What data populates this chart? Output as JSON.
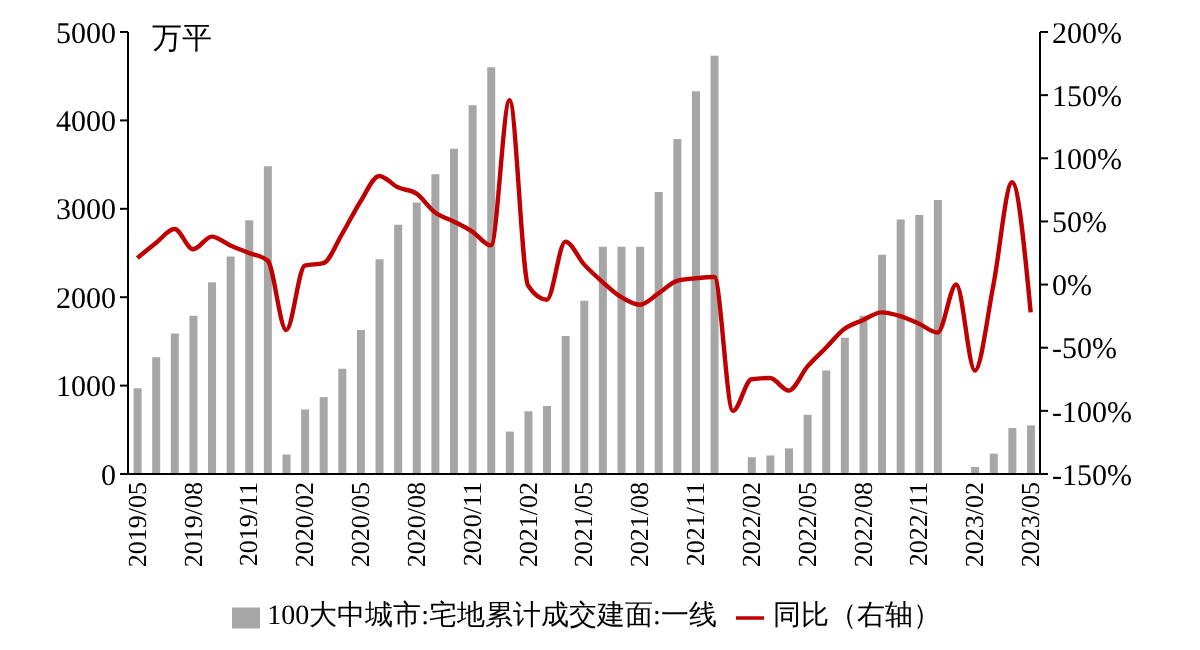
{
  "chart_data": {
    "type": "bar",
    "ylabel": "万平",
    "categories": [
      "2019/05",
      null,
      null,
      "2019/08",
      null,
      null,
      "2019/11",
      null,
      null,
      "2020/02",
      null,
      null,
      "2020/05",
      null,
      null,
      "2020/08",
      null,
      null,
      "2020/11",
      null,
      null,
      "2021/02",
      null,
      null,
      "2021/05",
      null,
      null,
      "2021/08",
      null,
      null,
      "2021/11",
      null,
      null,
      "2022/02",
      null,
      null,
      "2022/05",
      null,
      null,
      "2022/08",
      null,
      null,
      "2022/11",
      null,
      null,
      "2023/02",
      null,
      null,
      "2023/05"
    ],
    "series": [
      {
        "name": "100大中城市:宅地累计成交建面:一线",
        "color": "#a6a6a6",
        "values": [
          970,
          1320,
          1590,
          1790,
          2170,
          2460,
          2870,
          3480,
          220,
          730,
          870,
          1190,
          1630,
          2430,
          2820,
          3070,
          3390,
          3680,
          4170,
          4600,
          480,
          710,
          770,
          1560,
          1960,
          2570,
          2570,
          2570,
          3190,
          3790,
          4330,
          4730,
          null,
          190,
          210,
          290,
          670,
          1170,
          1540,
          1790,
          2480,
          2880,
          2930,
          3100,
          null,
          80,
          230,
          520,
          550
        ]
      },
      {
        "name": "同比（右轴）",
        "type": "line",
        "axis": "y2",
        "color": "#c00000",
        "values": [
          21,
          33,
          44,
          28,
          38,
          31,
          25,
          19,
          -36,
          15,
          17,
          40,
          66,
          86,
          77,
          72,
          57,
          50,
          42,
          31,
          146,
          -1,
          -12,
          34,
          16,
          2,
          -10,
          -16,
          -7,
          3,
          5,
          6,
          -100,
          -75,
          -74,
          -84,
          -65,
          -50,
          -35,
          -28,
          -22,
          -25,
          -31,
          -38,
          0,
          -68,
          0,
          81,
          -22
        ]
      }
    ],
    "ylim": [
      0,
      5000
    ],
    "yticks": [
      0,
      1000,
      2000,
      3000,
      4000,
      5000
    ],
    "y2lim": [
      -150,
      200
    ],
    "y2ticks": [
      {
        "value": -150,
        "label": "-150%"
      },
      {
        "value": -100,
        "label": "-100%"
      },
      {
        "value": -50,
        "label": "-50%"
      },
      {
        "value": 0,
        "label": "0%"
      },
      {
        "value": 50,
        "label": "50%"
      },
      {
        "value": 100,
        "label": "100%"
      },
      {
        "value": 150,
        "label": "150%"
      },
      {
        "value": 200,
        "label": "200%"
      }
    ],
    "grid": false,
    "legend": "bottom",
    "marker": "none",
    "line_style": "solid"
  }
}
